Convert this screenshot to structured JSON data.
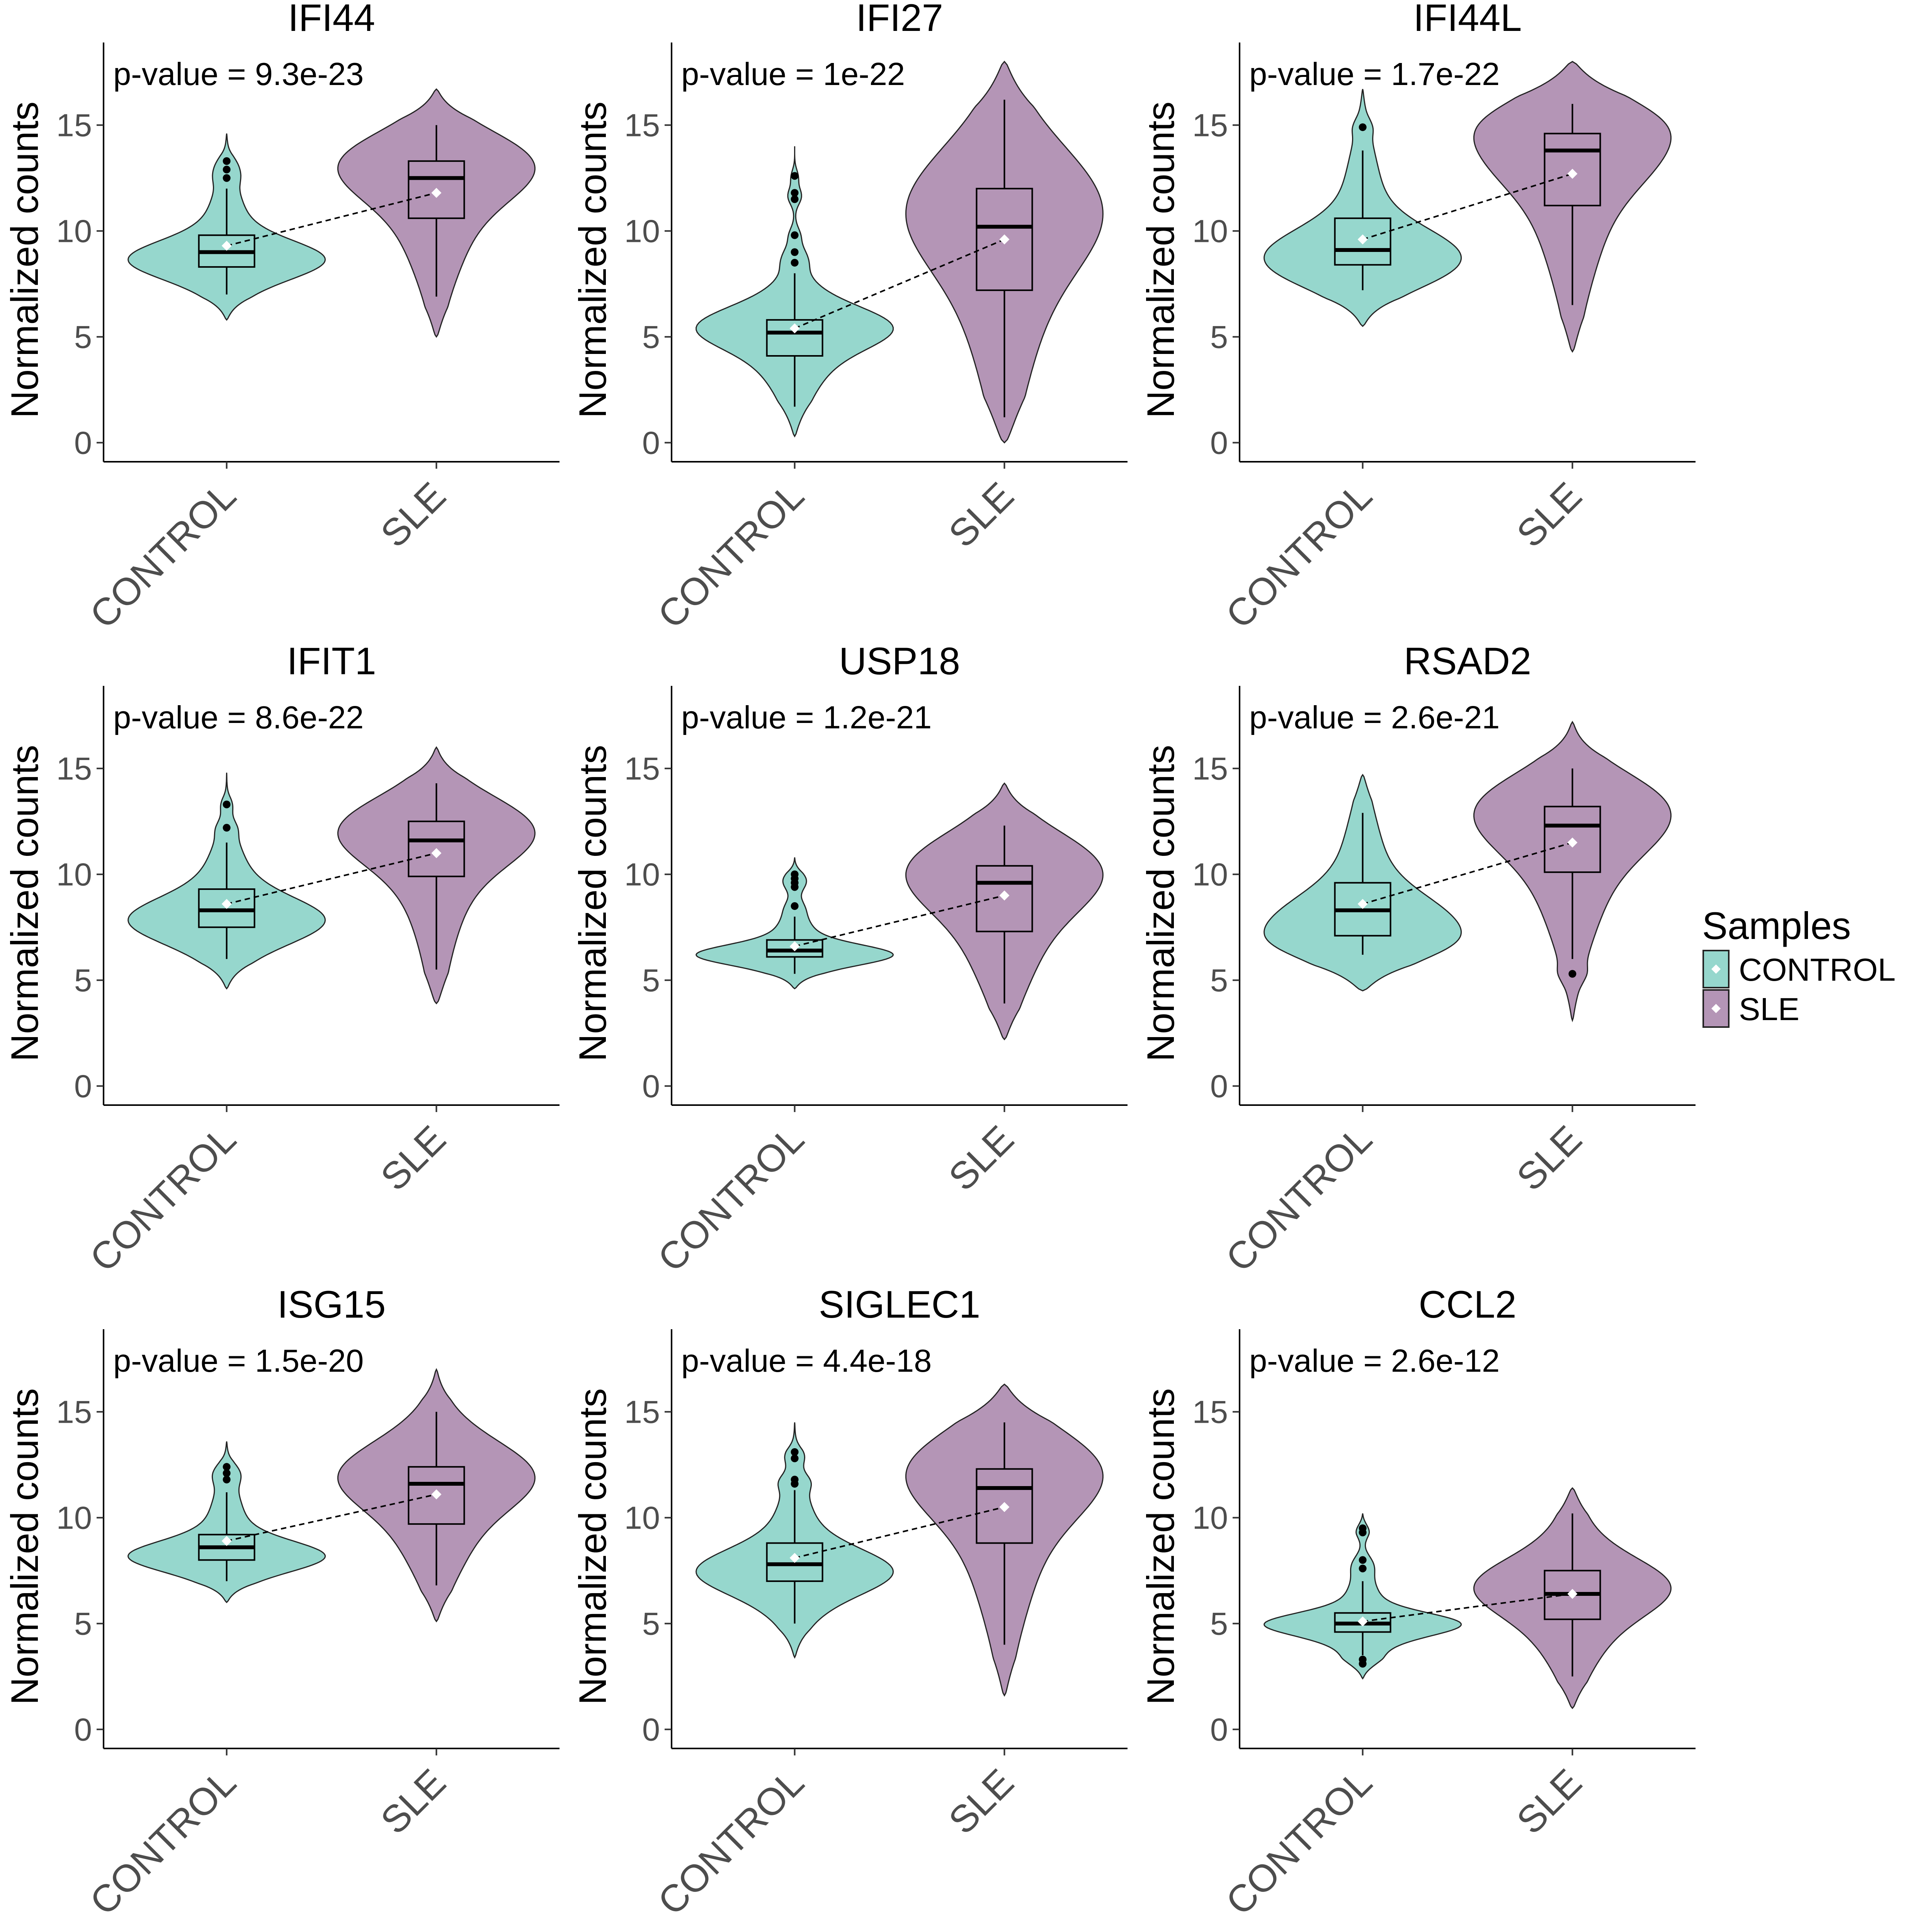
{
  "chart_data": {
    "type": "violin",
    "y_label": "Normalized counts",
    "y_ticks": [
      0,
      5,
      10,
      15
    ],
    "ylim": [
      -0.9,
      18.9
    ],
    "categories": [
      "CONTROL",
      "SLE"
    ],
    "layout": "3x3 facets",
    "legend": {
      "title": "Samples",
      "position": "right",
      "entries": [
        {
          "label": "CONTROL",
          "color": "#96d7cd"
        },
        {
          "label": "SLE",
          "color": "#b495b6"
        }
      ]
    },
    "panels": [
      {
        "title": "IFI44",
        "pvalue_text": "p-value = 9.3e-23",
        "groups": [
          {
            "name": "CONTROL",
            "median": 9.0,
            "q1": 8.3,
            "q3": 9.8,
            "whisker_low": 7.0,
            "whisker_high": 12.0,
            "mean": 9.3,
            "violin_min": 5.8,
            "violin_max": 14.6,
            "mode": 8.7,
            "outliers": [
              12.5,
              12.9,
              13.3
            ]
          },
          {
            "name": "SLE",
            "median": 12.5,
            "q1": 10.6,
            "q3": 13.3,
            "whisker_low": 6.9,
            "whisker_high": 15.0,
            "mean": 11.8,
            "violin_min": 5.0,
            "violin_max": 16.7,
            "mode": 13.0,
            "outliers": []
          }
        ]
      },
      {
        "title": "IFI27",
        "pvalue_text": "p-value = 1e-22",
        "groups": [
          {
            "name": "CONTROL",
            "median": 5.2,
            "q1": 4.1,
            "q3": 5.8,
            "whisker_low": 1.7,
            "whisker_high": 8.0,
            "mean": 5.4,
            "violin_min": 0.3,
            "violin_max": 14.0,
            "mode": 5.5,
            "outliers": [
              8.5,
              9.0,
              9.8,
              11.5,
              11.8,
              12.6
            ]
          },
          {
            "name": "SLE",
            "median": 10.2,
            "q1": 7.2,
            "q3": 12.0,
            "whisker_low": 1.2,
            "whisker_high": 16.2,
            "mean": 9.6,
            "violin_min": 0.0,
            "violin_max": 18.0,
            "mode": 11.0,
            "outliers": []
          }
        ]
      },
      {
        "title": "IFI44L",
        "pvalue_text": "p-value = 1.7e-22",
        "groups": [
          {
            "name": "CONTROL",
            "median": 9.1,
            "q1": 8.4,
            "q3": 10.6,
            "whisker_low": 7.2,
            "whisker_high": 13.8,
            "mean": 9.6,
            "violin_min": 5.5,
            "violin_max": 16.7,
            "mode": 8.9,
            "outliers": [
              14.9
            ]
          },
          {
            "name": "SLE",
            "median": 13.8,
            "q1": 11.2,
            "q3": 14.6,
            "whisker_low": 6.5,
            "whisker_high": 16.0,
            "mean": 12.7,
            "violin_min": 4.3,
            "violin_max": 18.0,
            "mode": 14.3,
            "outliers": []
          }
        ]
      },
      {
        "title": "IFIT1",
        "pvalue_text": "p-value = 8.6e-22",
        "groups": [
          {
            "name": "CONTROL",
            "median": 8.3,
            "q1": 7.5,
            "q3": 9.3,
            "whisker_low": 6.0,
            "whisker_high": 11.5,
            "mean": 8.6,
            "violin_min": 4.6,
            "violin_max": 14.8,
            "mode": 7.9,
            "outliers": [
              12.2,
              13.3
            ]
          },
          {
            "name": "SLE",
            "median": 11.6,
            "q1": 9.9,
            "q3": 12.5,
            "whisker_low": 5.5,
            "whisker_high": 14.3,
            "mean": 11.0,
            "violin_min": 3.9,
            "violin_max": 16.0,
            "mode": 12.0,
            "outliers": []
          }
        ]
      },
      {
        "title": "USP18",
        "pvalue_text": "p-value = 1.2e-21",
        "groups": [
          {
            "name": "CONTROL",
            "median": 6.4,
            "q1": 6.1,
            "q3": 6.9,
            "whisker_low": 5.3,
            "whisker_high": 8.0,
            "mean": 6.6,
            "violin_min": 4.6,
            "violin_max": 10.8,
            "mode": 6.2,
            "outliers": [
              8.5,
              9.4,
              9.6,
              9.8,
              10.0
            ]
          },
          {
            "name": "SLE",
            "median": 9.6,
            "q1": 7.3,
            "q3": 10.4,
            "whisker_low": 3.9,
            "whisker_high": 12.3,
            "mean": 9.0,
            "violin_min": 2.2,
            "violin_max": 14.3,
            "mode": 10.0,
            "outliers": []
          }
        ]
      },
      {
        "title": "RSAD2",
        "pvalue_text": "p-value = 2.6e-21",
        "groups": [
          {
            "name": "CONTROL",
            "median": 8.3,
            "q1": 7.1,
            "q3": 9.6,
            "whisker_low": 6.2,
            "whisker_high": 12.9,
            "mean": 8.6,
            "violin_min": 4.5,
            "violin_max": 14.7,
            "mode": 7.5,
            "outliers": []
          },
          {
            "name": "SLE",
            "median": 12.3,
            "q1": 10.1,
            "q3": 13.2,
            "whisker_low": 6.0,
            "whisker_high": 15.0,
            "mean": 11.5,
            "violin_min": 3.1,
            "violin_max": 17.2,
            "mode": 12.8,
            "outliers": [
              5.3
            ]
          }
        ]
      },
      {
        "title": "ISG15",
        "pvalue_text": "p-value = 1.5e-20",
        "groups": [
          {
            "name": "CONTROL",
            "median": 8.6,
            "q1": 8.0,
            "q3": 9.2,
            "whisker_low": 7.0,
            "whisker_high": 11.2,
            "mean": 8.9,
            "violin_min": 6.0,
            "violin_max": 13.6,
            "mode": 8.2,
            "outliers": [
              11.8,
              12.1,
              12.4
            ]
          },
          {
            "name": "SLE",
            "median": 11.6,
            "q1": 9.7,
            "q3": 12.4,
            "whisker_low": 6.8,
            "whisker_high": 15.0,
            "mean": 11.1,
            "violin_min": 5.1,
            "violin_max": 17.0,
            "mode": 12.0,
            "outliers": []
          }
        ]
      },
      {
        "title": "SIGLEC1",
        "pvalue_text": "p-value = 4.4e-18",
        "groups": [
          {
            "name": "CONTROL",
            "median": 7.8,
            "q1": 7.0,
            "q3": 8.8,
            "whisker_low": 5.0,
            "whisker_high": 11.3,
            "mean": 8.1,
            "violin_min": 3.4,
            "violin_max": 14.5,
            "mode": 7.5,
            "outliers": [
              11.6,
              11.8,
              12.8,
              13.1
            ]
          },
          {
            "name": "SLE",
            "median": 11.4,
            "q1": 8.8,
            "q3": 12.3,
            "whisker_low": 4.0,
            "whisker_high": 14.5,
            "mean": 10.5,
            "violin_min": 1.6,
            "violin_max": 16.3,
            "mode": 12.0,
            "outliers": []
          }
        ]
      },
      {
        "title": "CCL2",
        "pvalue_text": "p-value = 2.6e-12",
        "groups": [
          {
            "name": "CONTROL",
            "median": 5.0,
            "q1": 4.6,
            "q3": 5.5,
            "whisker_low": 3.5,
            "whisker_high": 7.0,
            "mean": 5.1,
            "violin_min": 2.4,
            "violin_max": 10.2,
            "mode": 5.0,
            "outliers": [
              3.1,
              3.3,
              7.6,
              8.0,
              9.3,
              9.5
            ]
          },
          {
            "name": "SLE",
            "median": 6.4,
            "q1": 5.2,
            "q3": 7.5,
            "whisker_low": 2.5,
            "whisker_high": 10.2,
            "mean": 6.4,
            "violin_min": 1.0,
            "violin_max": 11.4,
            "mode": 6.8,
            "outliers": []
          }
        ]
      }
    ]
  }
}
